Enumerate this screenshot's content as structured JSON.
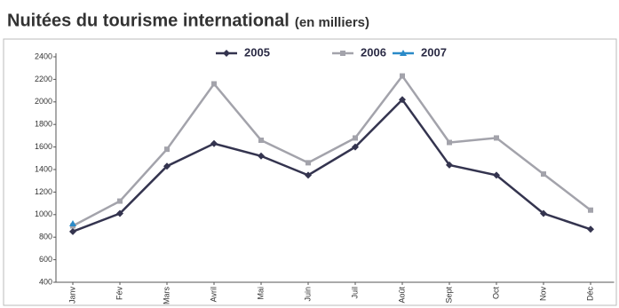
{
  "chart_data": {
    "type": "line",
    "title": "Nuitées du tourisme international",
    "unit": "(en milliers)",
    "categories": [
      "Janv",
      "Fév",
      "Mars",
      "Avril",
      "Mai",
      "Juin",
      "Juil",
      "Août",
      "Sept",
      "Oct",
      "Nov",
      "Déc"
    ],
    "series": [
      {
        "name": "2005",
        "color": "#34344f",
        "marker": "diamond",
        "values": [
          850,
          1010,
          1430,
          1630,
          1520,
          1350,
          1600,
          2020,
          1440,
          1350,
          1010,
          870
        ]
      },
      {
        "name": "2006",
        "color": "#a3a3ab",
        "marker": "square",
        "values": [
          900,
          1120,
          1580,
          2160,
          1660,
          1460,
          1680,
          2230,
          1640,
          1680,
          1360,
          1040
        ]
      },
      {
        "name": "2007",
        "color": "#2a8ac8",
        "marker": "triangle",
        "values": [
          920,
          null,
          null,
          null,
          null,
          null,
          null,
          null,
          null,
          null,
          null,
          null
        ]
      }
    ],
    "ylim": [
      400,
      2400
    ],
    "yticks": [
      400,
      600,
      800,
      1000,
      1200,
      1400,
      1600,
      1800,
      2000,
      2200,
      2400
    ],
    "grid": false,
    "legend": "top"
  }
}
